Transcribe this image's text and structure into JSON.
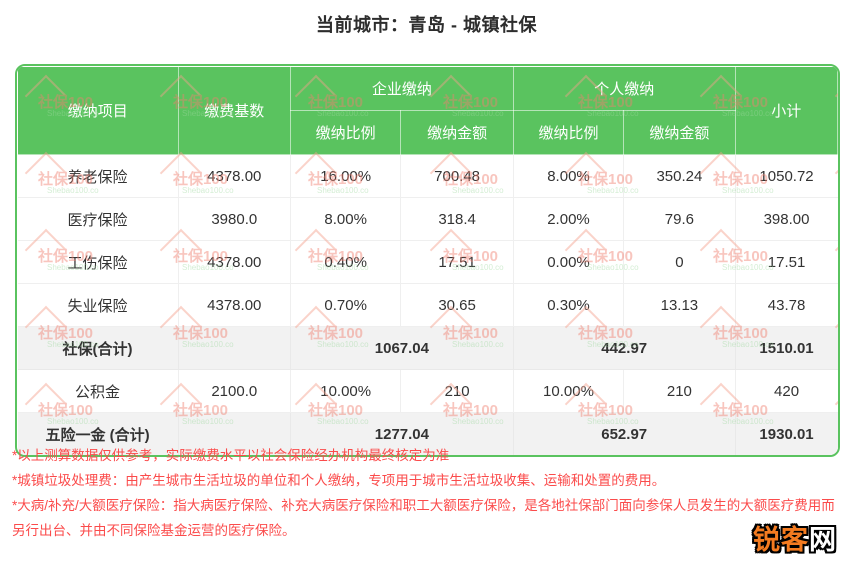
{
  "page": {
    "title": "当前城市：青岛 - 城镇社保"
  },
  "table": {
    "headers": {
      "item": "缴纳项目",
      "base": "缴费基数",
      "enterprise": "企业缴纳",
      "personal": "个人缴纳",
      "subtotal": "小计",
      "ratio": "缴纳比例",
      "amount": "缴纳金额"
    },
    "rows": [
      {
        "item": "养老保险",
        "base": "4378.00",
        "ent_ratio": "16.00%",
        "ent_amount": "700.48",
        "per_ratio": "8.00%",
        "per_amount": "350.24",
        "subtotal": "1050.72"
      },
      {
        "item": "医疗保险",
        "base": "3980.0",
        "ent_ratio": "8.00%",
        "ent_amount": "318.4",
        "per_ratio": "2.00%",
        "per_amount": "79.6",
        "subtotal": "398.00"
      },
      {
        "item": "工伤保险",
        "base": "4378.00",
        "ent_ratio": "0.40%",
        "ent_amount": "17.51",
        "per_ratio": "0.00%",
        "per_amount": "0",
        "subtotal": "17.51"
      },
      {
        "item": "失业保险",
        "base": "4378.00",
        "ent_ratio": "0.70%",
        "ent_amount": "30.65",
        "per_ratio": "0.30%",
        "per_amount": "13.13",
        "subtotal": "43.78"
      }
    ],
    "social_total": {
      "item": "社保(合计)",
      "ent_amount": "1067.04",
      "per_amount": "442.97",
      "subtotal": "1510.01"
    },
    "fund": {
      "item": "公积金",
      "base": "2100.0",
      "ent_ratio": "10.00%",
      "ent_amount": "210",
      "per_ratio": "10.00%",
      "per_amount": "210",
      "subtotal": "420"
    },
    "grand_total": {
      "item": "五险一金 (合计)",
      "ent_amount": "1277.04",
      "per_amount": "652.97",
      "subtotal": "1930.01"
    }
  },
  "notes": [
    "*以上测算数据仅供参考，实际缴费水平以社会保险经办机构最终核定为准",
    "*城镇垃圾处理费：由产生城市生活垃圾的单位和个人缴纳，专项用于城市生活垃圾收集、运输和处置的费用。",
    "*大病/补充/大额医疗保险：指大病医疗保险、补充大病医疗保险和职工大额医疗保险，是各地社保部门面向参保人员发生的大额医疗费用而另行出台、并由不同保险基金运营的医疗保险。"
  ],
  "watermark": {
    "text": "社保100",
    "subtext": "Shebao100.co"
  },
  "logo": {
    "part1": "锐客",
    "part2": "网"
  },
  "colors": {
    "accent_green": "#5ac35f",
    "note_red": "#fb4b4b",
    "summary_bg": "#f2f2f2",
    "logo_orange": "#f47b20",
    "body_text": "#333333"
  }
}
